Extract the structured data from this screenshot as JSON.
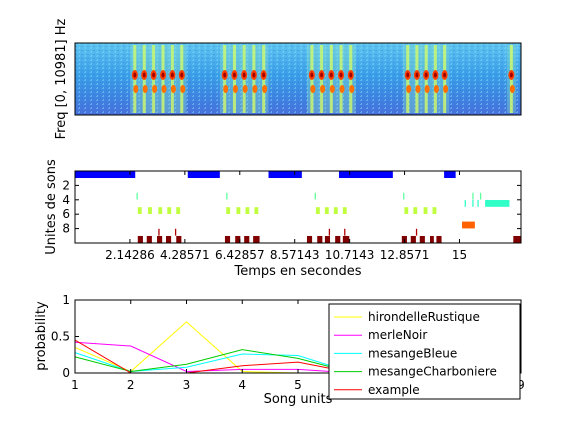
{
  "chart_data": [
    {
      "type": "heatmap",
      "title": "",
      "ylabel": "Freq [0, 10981] Hz",
      "xlabel": "",
      "colormap": "jet",
      "bursts": [
        {
          "start": 2.15,
          "end": 4.35
        },
        {
          "start": 5.65,
          "end": 7.55
        },
        {
          "start": 9.05,
          "end": 10.95
        },
        {
          "start": 12.8,
          "end": 14.6
        },
        {
          "start": 16.85,
          "end": 17.2
        }
      ],
      "xlim": [
        0,
        17.4
      ]
    },
    {
      "type": "bar",
      "title": "",
      "ylabel": "Unites de sons",
      "xlabel": "Temps en secondes",
      "xticks": [
        "2.14286",
        "4.28571",
        "6.42857",
        "8.57143",
        "10.7143",
        "12.8571",
        "15"
      ],
      "xtick_values": [
        2.14286,
        4.28571,
        6.42857,
        8.57143,
        10.7143,
        12.8571,
        15
      ],
      "yticks": [
        "2",
        "4",
        "6",
        "8"
      ],
      "ytick_values": [
        2,
        4,
        6,
        8
      ],
      "xlim": [
        0,
        17.4
      ],
      "ylim": [
        0,
        10
      ],
      "rows": [
        {
          "unit": 0,
          "color": "#0000ff",
          "segments": [
            [
              0.0,
              2.35
            ],
            [
              4.4,
              5.65
            ],
            [
              7.55,
              8.85
            ],
            [
              10.3,
              12.4
            ],
            [
              14.4,
              14.85
            ]
          ]
        },
        {
          "unit": 3,
          "color": "#5fffa0",
          "segments": [
            [
              2.4,
              2.45
            ],
            [
              5.9,
              5.95
            ],
            [
              9.35,
              9.4
            ],
            [
              12.8,
              12.85
            ],
            [
              15.5,
              15.55
            ],
            [
              15.8,
              15.85
            ]
          ]
        },
        {
          "unit": 4,
          "color": "#30ffc8",
          "segments": [
            [
              15.2,
              15.25
            ],
            [
              15.5,
              15.55
            ],
            [
              15.7,
              15.75
            ],
            [
              16.0,
              16.95
            ]
          ]
        },
        {
          "unit": 5,
          "color": "#c0ff40",
          "segments": [
            [
              2.45,
              2.6
            ],
            [
              2.85,
              3.0
            ],
            [
              3.25,
              3.4
            ],
            [
              3.6,
              3.75
            ],
            [
              3.95,
              4.1
            ],
            [
              5.9,
              6.05
            ],
            [
              6.3,
              6.45
            ],
            [
              6.65,
              6.8
            ],
            [
              7.0,
              7.15
            ],
            [
              9.4,
              9.55
            ],
            [
              9.75,
              9.9
            ],
            [
              10.1,
              10.25
            ],
            [
              10.45,
              10.6
            ],
            [
              12.85,
              13.0
            ],
            [
              13.2,
              13.35
            ],
            [
              13.6,
              13.75
            ],
            [
              13.95,
              14.1
            ]
          ]
        },
        {
          "unit": 7,
          "color": "#ff6000",
          "segments": [
            [
              15.1,
              15.6
            ]
          ]
        },
        {
          "unit": 8,
          "color": "#b00000",
          "segments": [
            [
              3.25,
              3.3
            ],
            [
              3.9,
              3.95
            ],
            [
              9.9,
              9.95
            ],
            [
              10.5,
              10.55
            ],
            [
              13.3,
              13.35
            ]
          ]
        },
        {
          "unit": 9,
          "color": "#800000",
          "segments": [
            [
              2.45,
              2.65
            ],
            [
              2.8,
              3.0
            ],
            [
              3.2,
              3.4
            ],
            [
              3.55,
              3.75
            ],
            [
              3.95,
              4.15
            ],
            [
              5.85,
              6.05
            ],
            [
              6.25,
              6.45
            ],
            [
              6.6,
              6.8
            ],
            [
              6.95,
              7.2
            ],
            [
              9.05,
              9.25
            ],
            [
              9.45,
              9.65
            ],
            [
              9.75,
              9.95
            ],
            [
              10.15,
              10.35
            ],
            [
              10.45,
              10.7
            ],
            [
              12.75,
              12.95
            ],
            [
              13.1,
              13.3
            ],
            [
              13.45,
              13.65
            ],
            [
              13.85,
              14.0
            ],
            [
              14.1,
              14.3
            ],
            [
              17.1,
              17.4
            ]
          ]
        }
      ]
    },
    {
      "type": "line",
      "title": "",
      "xlabel": "Song units",
      "ylabel": "probability",
      "x": [
        1,
        2,
        3,
        4,
        5,
        6,
        7,
        8,
        9
      ],
      "xlim": [
        1,
        9
      ],
      "ylim": [
        0,
        1
      ],
      "yticks": [
        "0",
        "0.5",
        "1"
      ],
      "ytick_values": [
        0,
        0.5,
        1
      ],
      "xticks": [
        "1",
        "2",
        "3",
        "4",
        "5",
        "9"
      ],
      "xtick_values": [
        1,
        2,
        3,
        4,
        5,
        9
      ],
      "legend_position": "top-right",
      "series": [
        {
          "name": "hirondelleRustique",
          "color": "#ffff00",
          "values": [
            0.35,
            0.02,
            0.7,
            0.02,
            0.0,
            0.0,
            0.0,
            0.0,
            0.0
          ]
        },
        {
          "name": "merleNoir",
          "color": "#ff00ff",
          "values": [
            0.42,
            0.37,
            0.02,
            0.05,
            0.05,
            0.0,
            0.0,
            0.0,
            0.2
          ]
        },
        {
          "name": "mesangeBleue",
          "color": "#00ffff",
          "values": [
            0.28,
            0.02,
            0.08,
            0.26,
            0.24,
            0.0,
            0.0,
            0.0,
            0.1
          ]
        },
        {
          "name": "mesangeCharboniere",
          "color": "#00cc00",
          "values": [
            0.22,
            0.02,
            0.12,
            0.32,
            0.2,
            0.0,
            0.0,
            0.0,
            0.2
          ]
        },
        {
          "name": "example",
          "color": "#ff0000",
          "values": [
            0.45,
            0.0,
            0.0,
            0.1,
            0.15,
            0.0,
            0.0,
            0.0,
            0.0
          ]
        }
      ]
    }
  ]
}
